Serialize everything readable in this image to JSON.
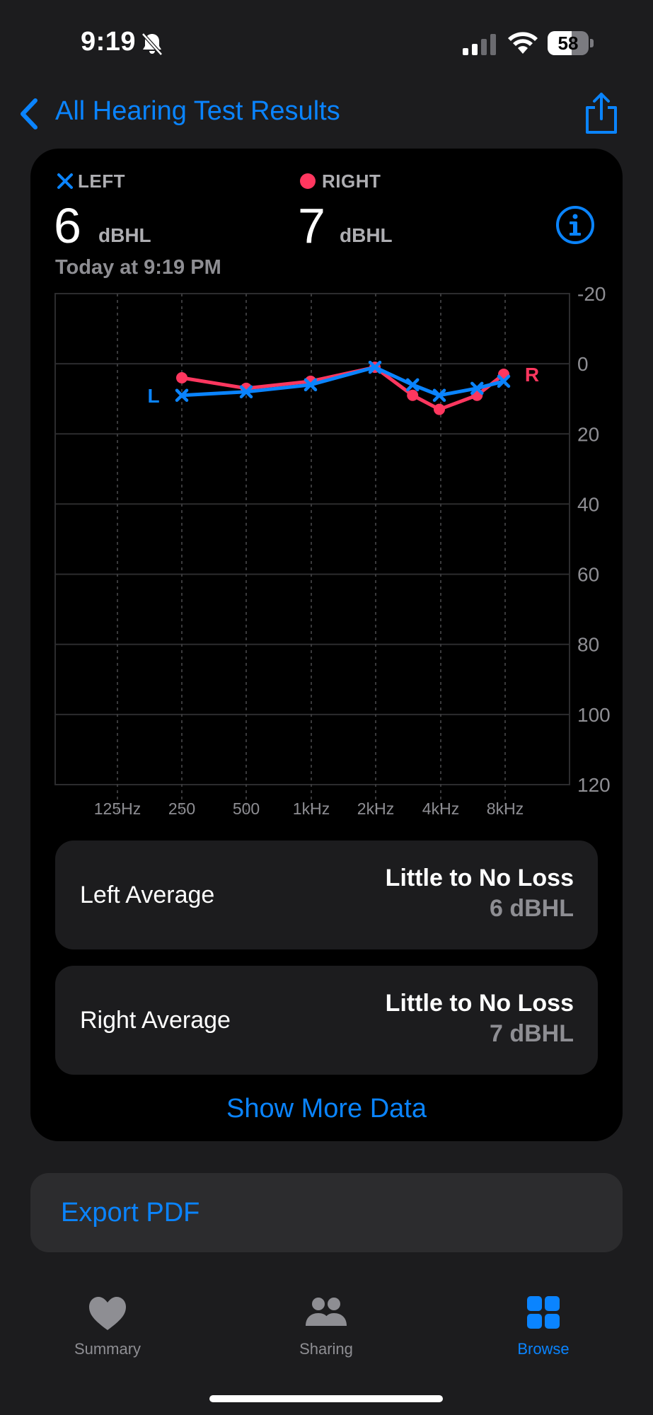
{
  "status_bar": {
    "time": "9:19",
    "battery": "58"
  },
  "nav": {
    "back_label": "All Hearing Test Results"
  },
  "summary": {
    "left_label": "LEFT",
    "right_label": "RIGHT",
    "left_value": "6",
    "right_value": "7",
    "unit": "dBHL",
    "timestamp": "Today at 9:19 PM"
  },
  "colors": {
    "left": "#0a84ff",
    "right": "#ff375f",
    "accent": "#0a84ff"
  },
  "chart_data": {
    "type": "line",
    "x_categories": [
      "125Hz",
      "250",
      "500",
      "1kHz",
      "2kHz",
      "4kHz",
      "8kHz"
    ],
    "y_ticks": [
      "-20",
      "0",
      "20",
      "40",
      "60",
      "80",
      "100",
      "120"
    ],
    "ylim": [
      -20,
      120
    ],
    "y_inverted": true,
    "series": [
      {
        "name": "L",
        "marker": "x",
        "color": "#0a84ff",
        "x": [
          250,
          500,
          1000,
          2000,
          3000,
          4000,
          6000,
          8000
        ],
        "y": [
          9,
          8,
          6,
          1,
          6,
          9,
          7,
          5
        ]
      },
      {
        "name": "R",
        "marker": "circle",
        "color": "#ff375f",
        "x": [
          250,
          500,
          1000,
          2000,
          3000,
          4000,
          6000,
          8000
        ],
        "y": [
          4,
          7,
          5,
          1,
          9,
          13,
          9,
          3
        ]
      }
    ]
  },
  "averages": [
    {
      "name": "Left Average",
      "classification": "Little to No Loss",
      "value": "6 dBHL"
    },
    {
      "name": "Right Average",
      "classification": "Little to No Loss",
      "value": "7 dBHL"
    }
  ],
  "show_more_label": "Show More Data",
  "export_label": "Export PDF",
  "tabs": [
    {
      "label": "Summary",
      "icon": "heart-icon",
      "active": false
    },
    {
      "label": "Sharing",
      "icon": "people-icon",
      "active": false
    },
    {
      "label": "Browse",
      "icon": "grid-icon",
      "active": true
    }
  ]
}
